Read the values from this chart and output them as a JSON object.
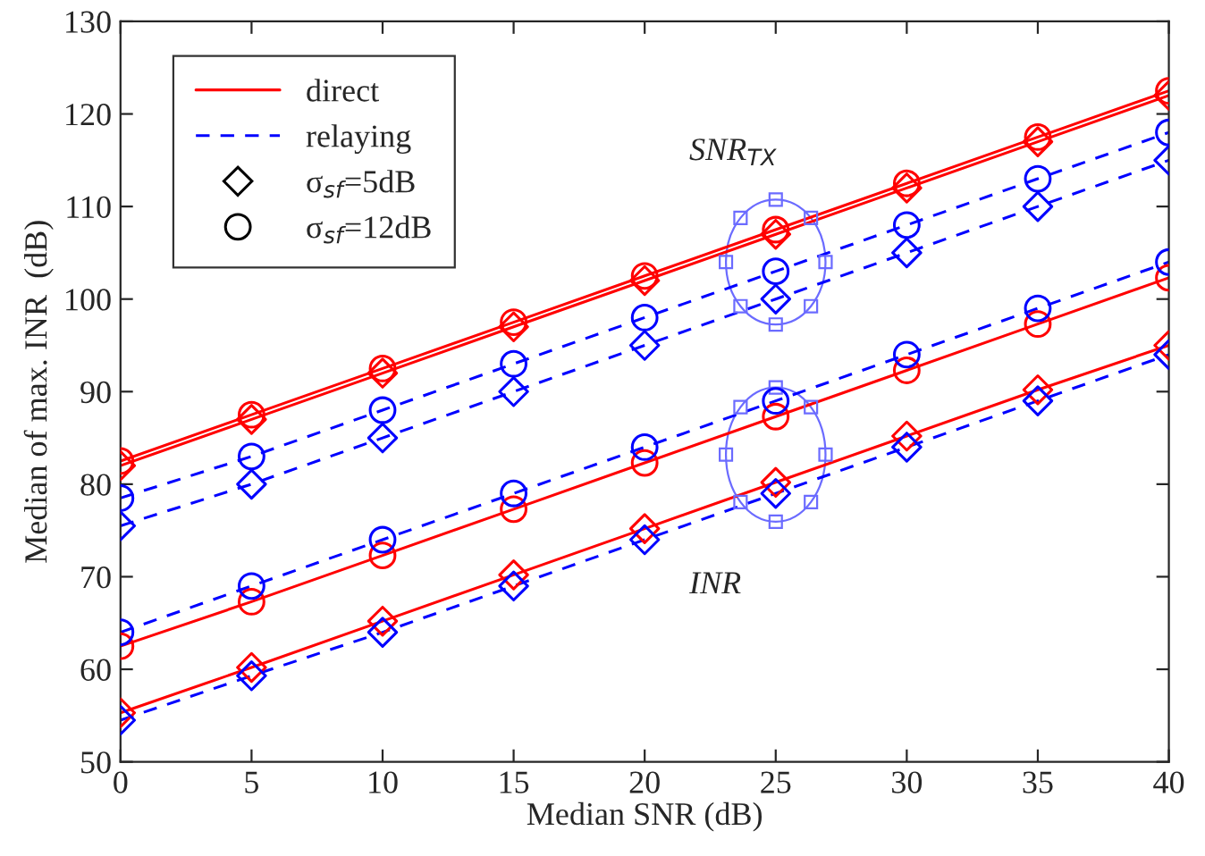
{
  "chart_data": {
    "type": "line",
    "xlabel": "Median SNR (dB)",
    "ylabel": "Median of max. INR  (dB)",
    "x": [
      0,
      5,
      10,
      15,
      20,
      25,
      30,
      35,
      40
    ],
    "series": [
      {
        "name": "direct",
        "color": "#ff0000",
        "line_style": "solid",
        "marker": "diamond",
        "values": [
          82,
          87,
          92,
          97,
          102,
          107,
          112,
          117,
          122
        ]
      },
      {
        "color": "#ff0000",
        "line_style": "solid",
        "marker": "circle",
        "values": [
          82.5,
          87.5,
          92.5,
          97.5,
          102.5,
          107.5,
          112.5,
          117.5,
          122.5
        ]
      },
      {
        "name": "relaying",
        "color": "#0000ff",
        "line_style": "dashed",
        "marker": "diamond",
        "values": [
          75.5,
          80,
          85,
          90,
          95,
          100,
          105,
          110,
          115
        ]
      },
      {
        "color": "#0000ff",
        "line_style": "dashed",
        "marker": "circle",
        "values": [
          78.5,
          83,
          88,
          93,
          98,
          103,
          108,
          113,
          118
        ]
      },
      {
        "color": "#ff0000",
        "line_style": "solid",
        "marker": "circle",
        "values": [
          62.5,
          67.3,
          72.3,
          77.3,
          82.3,
          87.3,
          92.3,
          97.3,
          102.3
        ]
      },
      {
        "color": "#0000ff",
        "line_style": "dashed",
        "marker": "circle",
        "values": [
          64,
          69,
          74,
          79,
          84,
          89,
          94,
          99,
          104
        ]
      },
      {
        "color": "#ff0000",
        "line_style": "solid",
        "marker": "diamond",
        "values": [
          55.3,
          60.2,
          65.2,
          70.2,
          75.2,
          80.2,
          85.2,
          90.2,
          95
        ]
      },
      {
        "color": "#0000ff",
        "line_style": "dashed",
        "marker": "diamond",
        "values": [
          54.5,
          59.3,
          64,
          69,
          74,
          79,
          84,
          89,
          94
        ]
      },
      {
        "name": "σ$_{sf}$=5dB",
        "color": "#000000",
        "line_style": "none",
        "marker": "diamond",
        "values": [
          null,
          null,
          null,
          null,
          null,
          null,
          null,
          null,
          null
        ]
      },
      {
        "name": "σ$_{sf}$=12dB",
        "color": "#000000",
        "line_style": "none",
        "marker": "circle",
        "values": [
          null,
          null,
          null,
          null,
          null,
          null,
          null,
          null,
          null
        ]
      }
    ],
    "annotations": [
      {
        "text": "SNR$_{TX}$",
        "x": 25,
        "y": 107
      },
      {
        "text": "INR",
        "x": 25,
        "y": 80.2
      }
    ],
    "xlim": [
      0,
      40
    ],
    "xticks": [
      0,
      5,
      10,
      15,
      20,
      25,
      30,
      35,
      40
    ],
    "ylim": [
      50,
      130
    ],
    "yticks": [
      50,
      60,
      70,
      80,
      90,
      100,
      110,
      120,
      130
    ],
    "legend": "top left",
    "grid": false
  }
}
